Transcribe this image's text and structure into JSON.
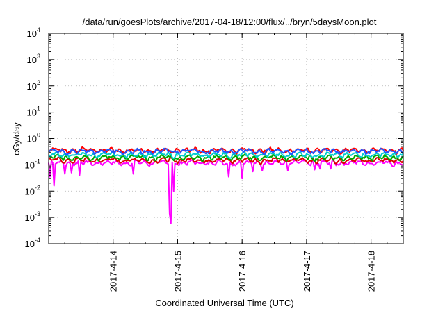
{
  "chart_data": {
    "type": "line",
    "title": "/data/run/goesPlots/archive/2017-04-18/12:00/flux/../bryn/5daysMoon.plot",
    "xlabel": "Coordinated Universal Time (UTC)",
    "ylabel": "cGy/day",
    "yscale": "log",
    "ylim": [
      0.0001,
      10000
    ],
    "y_tick_labels": [
      {
        "base": "10",
        "exp": "-4",
        "value": 0.0001
      },
      {
        "base": "10",
        "exp": "-3",
        "value": 0.001
      },
      {
        "base": "10",
        "exp": "-2",
        "value": 0.01
      },
      {
        "base": "10",
        "exp": "-1",
        "value": 0.1
      },
      {
        "base": "10",
        "exp": "0",
        "value": 1
      },
      {
        "base": "10",
        "exp": "1",
        "value": 10
      },
      {
        "base": "10",
        "exp": "2",
        "value": 100
      },
      {
        "base": "10",
        "exp": "3",
        "value": 1000
      },
      {
        "base": "10",
        "exp": "4",
        "value": 10000
      }
    ],
    "xlim": [
      "2017-04-13T00:00",
      "2017-04-18T12:00"
    ],
    "x_tick_labels": [
      {
        "label": "2017-4-14",
        "time": "2017-04-14T00:00"
      },
      {
        "label": "2017-4-15",
        "time": "2017-04-15T00:00"
      },
      {
        "label": "2017-4-16",
        "time": "2017-04-16T00:00"
      },
      {
        "label": "2017-4-17",
        "time": "2017-04-17T00:00"
      },
      {
        "label": "2017-4-18",
        "time": "2017-04-18T00:00"
      }
    ],
    "grid": true,
    "series": [
      {
        "color": "#ff00ff",
        "base": 0.12,
        "dips": [
          {
            "time": "2017-04-13T00:30",
            "value": 0.035
          },
          {
            "time": "2017-04-13T02:00",
            "value": 0.016
          },
          {
            "time": "2017-04-13T06:00",
            "value": 0.045
          },
          {
            "time": "2017-04-13T08:30",
            "value": 0.05
          },
          {
            "time": "2017-04-13T11:30",
            "value": 0.04
          },
          {
            "time": "2017-04-14T07:30",
            "value": 0.045
          },
          {
            "time": "2017-04-14T21:00",
            "value": 0.0014
          },
          {
            "time": "2017-04-14T21:30",
            "value": 0.0006
          },
          {
            "time": "2017-04-14T22:30",
            "value": 0.01
          },
          {
            "time": "2017-04-15T19:00",
            "value": 0.035
          },
          {
            "time": "2017-04-16T00:00",
            "value": 0.03
          },
          {
            "time": "2017-04-16T04:00",
            "value": 0.055
          },
          {
            "time": "2017-04-16T07:30",
            "value": 0.06
          },
          {
            "time": "2017-04-16T17:00",
            "value": 0.06
          },
          {
            "time": "2017-04-17T03:00",
            "value": 0.065
          },
          {
            "time": "2017-04-17T05:00",
            "value": 0.07
          },
          {
            "time": "2017-04-17T09:00",
            "value": 0.07
          }
        ]
      },
      {
        "color": "#dd0000",
        "base": 0.15,
        "dips": []
      },
      {
        "color": "#00aa00",
        "base": 0.19,
        "dips": []
      },
      {
        "color": "#00cccc",
        "base": 0.24,
        "dips": []
      },
      {
        "color": "#ff0000",
        "base": 0.36,
        "dips": []
      },
      {
        "color": "#2255ff",
        "base": 0.33,
        "dips": []
      }
    ]
  }
}
